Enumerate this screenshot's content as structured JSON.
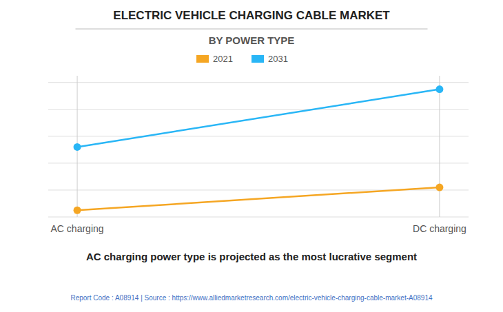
{
  "chart_data": {
    "type": "line",
    "title": "ELECTRIC VEHICLE CHARGING CABLE MARKET",
    "subtitle": "BY POWER TYPE",
    "categories": [
      "AC charging",
      "DC charging"
    ],
    "series": [
      {
        "name": "2021",
        "color": "#F5A623",
        "values": [
          0.05,
          0.22
        ],
        "marker": "circle"
      },
      {
        "name": "2031",
        "color": "#29B6F6",
        "values": [
          0.52,
          0.95
        ],
        "marker": "circle"
      }
    ],
    "ylim": [
      0,
      1.05
    ],
    "yticks": [
      0,
      0.2,
      0.4,
      0.6,
      0.8,
      1.0
    ],
    "grid": true,
    "tick_labels": "x",
    "legend": "top",
    "annotations": [
      "AC charging power type is projected as the most lucrative segment",
      "Report Code : A08914  |  Source : https://www.alliedmarketresearch.com/electric-vehicle-charging-cable-market-A08914"
    ]
  }
}
